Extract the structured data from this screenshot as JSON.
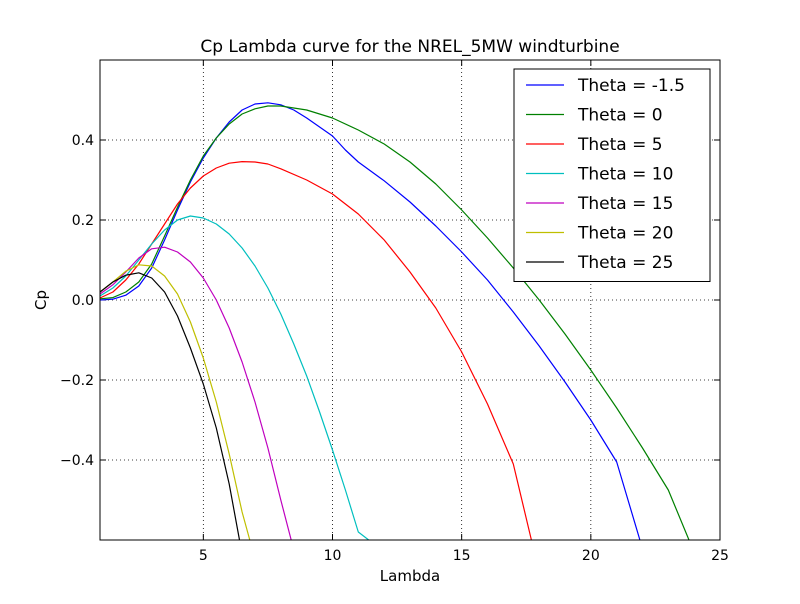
{
  "chart_data": {
    "type": "line",
    "title": "Cp Lambda curve for the NREL_5MW windturbine",
    "xlabel": "Lambda",
    "ylabel": "Cp",
    "xlim": [
      1,
      25
    ],
    "ylim": [
      -0.6,
      0.6
    ],
    "xticks": [
      5,
      10,
      15,
      20,
      25
    ],
    "xtick_labels": [
      "5",
      "10",
      "15",
      "20",
      "25"
    ],
    "yticks": [
      -0.4,
      -0.2,
      0.0,
      0.2,
      0.4
    ],
    "ytick_labels": [
      "−0.4",
      "−0.2",
      "0.0",
      "0.2",
      "0.4"
    ],
    "grid": true,
    "legend_position": "top-right",
    "series": [
      {
        "name": "Theta = -1.5",
        "color": "#0000ff",
        "points": [
          [
            1.0,
            0.0
          ],
          [
            1.5,
            0.002
          ],
          [
            2.0,
            0.012
          ],
          [
            2.5,
            0.035
          ],
          [
            3.0,
            0.08
          ],
          [
            3.5,
            0.15
          ],
          [
            4.0,
            0.225
          ],
          [
            4.5,
            0.295
          ],
          [
            5.0,
            0.355
          ],
          [
            5.5,
            0.405
          ],
          [
            6.0,
            0.445
          ],
          [
            6.5,
            0.475
          ],
          [
            7.0,
            0.49
          ],
          [
            7.5,
            0.493
          ],
          [
            8.0,
            0.488
          ],
          [
            8.5,
            0.475
          ],
          [
            9.0,
            0.455
          ],
          [
            10.0,
            0.41
          ],
          [
            10.5,
            0.375
          ],
          [
            11.0,
            0.345
          ],
          [
            12.0,
            0.298
          ],
          [
            13.0,
            0.245
          ],
          [
            14.0,
            0.185
          ],
          [
            15.0,
            0.12
          ],
          [
            16.0,
            0.05
          ],
          [
            17.0,
            -0.03
          ],
          [
            18.0,
            -0.115
          ],
          [
            19.0,
            -0.205
          ],
          [
            20.0,
            -0.3
          ],
          [
            21.0,
            -0.405
          ],
          [
            21.9,
            -0.6
          ]
        ]
      },
      {
        "name": "Theta = 0",
        "color": "#008000",
        "points": [
          [
            1.0,
            0.003
          ],
          [
            1.5,
            0.006
          ],
          [
            2.0,
            0.02
          ],
          [
            2.5,
            0.045
          ],
          [
            3.0,
            0.09
          ],
          [
            3.5,
            0.16
          ],
          [
            4.0,
            0.232
          ],
          [
            4.5,
            0.3
          ],
          [
            5.0,
            0.36
          ],
          [
            5.5,
            0.405
          ],
          [
            6.0,
            0.44
          ],
          [
            6.5,
            0.465
          ],
          [
            7.0,
            0.478
          ],
          [
            7.5,
            0.485
          ],
          [
            8.0,
            0.485
          ],
          [
            9.0,
            0.475
          ],
          [
            10.0,
            0.455
          ],
          [
            11.0,
            0.425
          ],
          [
            12.0,
            0.39
          ],
          [
            13.0,
            0.345
          ],
          [
            14.0,
            0.29
          ],
          [
            15.0,
            0.225
          ],
          [
            16.0,
            0.155
          ],
          [
            17.0,
            0.08
          ],
          [
            18.0,
            0.0
          ],
          [
            19.0,
            -0.085
          ],
          [
            20.0,
            -0.175
          ],
          [
            21.0,
            -0.27
          ],
          [
            22.0,
            -0.37
          ],
          [
            23.0,
            -0.475
          ],
          [
            23.8,
            -0.6
          ]
        ]
      },
      {
        "name": "Theta = 5",
        "color": "#ff0000",
        "points": [
          [
            1.0,
            0.005
          ],
          [
            1.5,
            0.02
          ],
          [
            2.0,
            0.05
          ],
          [
            2.5,
            0.09
          ],
          [
            3.0,
            0.14
          ],
          [
            3.5,
            0.19
          ],
          [
            4.0,
            0.24
          ],
          [
            4.5,
            0.28
          ],
          [
            5.0,
            0.31
          ],
          [
            5.5,
            0.33
          ],
          [
            6.0,
            0.342
          ],
          [
            6.5,
            0.346
          ],
          [
            7.0,
            0.345
          ],
          [
            7.5,
            0.34
          ],
          [
            8.0,
            0.328
          ],
          [
            9.0,
            0.3
          ],
          [
            10.0,
            0.265
          ],
          [
            11.0,
            0.215
          ],
          [
            12.0,
            0.15
          ],
          [
            13.0,
            0.07
          ],
          [
            14.0,
            -0.02
          ],
          [
            15.0,
            -0.13
          ],
          [
            16.0,
            -0.26
          ],
          [
            17.0,
            -0.41
          ],
          [
            17.7,
            -0.6
          ]
        ]
      },
      {
        "name": "Theta = 10",
        "color": "#00bfbf",
        "points": [
          [
            1.0,
            0.01
          ],
          [
            1.5,
            0.03
          ],
          [
            2.0,
            0.06
          ],
          [
            2.5,
            0.1
          ],
          [
            3.0,
            0.14
          ],
          [
            3.5,
            0.175
          ],
          [
            4.0,
            0.2
          ],
          [
            4.5,
            0.21
          ],
          [
            5.0,
            0.205
          ],
          [
            5.5,
            0.19
          ],
          [
            6.0,
            0.165
          ],
          [
            6.5,
            0.13
          ],
          [
            7.0,
            0.085
          ],
          [
            7.5,
            0.03
          ],
          [
            8.0,
            -0.035
          ],
          [
            8.5,
            -0.11
          ],
          [
            9.0,
            -0.19
          ],
          [
            9.5,
            -0.28
          ],
          [
            10.0,
            -0.375
          ],
          [
            10.5,
            -0.475
          ],
          [
            11.0,
            -0.58
          ],
          [
            11.4,
            -0.6
          ]
        ]
      },
      {
        "name": "Theta = 15",
        "color": "#bf00bf",
        "points": [
          [
            1.0,
            0.015
          ],
          [
            1.5,
            0.038
          ],
          [
            2.0,
            0.07
          ],
          [
            2.5,
            0.105
          ],
          [
            3.0,
            0.128
          ],
          [
            3.5,
            0.132
          ],
          [
            4.0,
            0.12
          ],
          [
            4.5,
            0.095
          ],
          [
            5.0,
            0.055
          ],
          [
            5.5,
            0.0
          ],
          [
            6.0,
            -0.07
          ],
          [
            6.5,
            -0.155
          ],
          [
            7.0,
            -0.255
          ],
          [
            7.5,
            -0.37
          ],
          [
            8.0,
            -0.5
          ],
          [
            8.4,
            -0.6
          ]
        ]
      },
      {
        "name": "Theta = 20",
        "color": "#bfbf00",
        "points": [
          [
            1.0,
            0.02
          ],
          [
            1.5,
            0.045
          ],
          [
            2.0,
            0.072
          ],
          [
            2.5,
            0.088
          ],
          [
            3.0,
            0.085
          ],
          [
            3.5,
            0.06
          ],
          [
            4.0,
            0.015
          ],
          [
            4.5,
            -0.055
          ],
          [
            5.0,
            -0.145
          ],
          [
            5.5,
            -0.255
          ],
          [
            6.0,
            -0.385
          ],
          [
            6.5,
            -0.53
          ],
          [
            6.8,
            -0.6
          ]
        ]
      },
      {
        "name": "Theta = 25",
        "color": "#000000",
        "points": [
          [
            1.0,
            0.02
          ],
          [
            1.5,
            0.045
          ],
          [
            2.0,
            0.062
          ],
          [
            2.5,
            0.068
          ],
          [
            3.0,
            0.055
          ],
          [
            3.5,
            0.02
          ],
          [
            4.0,
            -0.04
          ],
          [
            4.5,
            -0.12
          ],
          [
            5.0,
            -0.21
          ],
          [
            5.5,
            -0.32
          ],
          [
            6.0,
            -0.46
          ],
          [
            6.4,
            -0.6
          ]
        ]
      }
    ]
  }
}
